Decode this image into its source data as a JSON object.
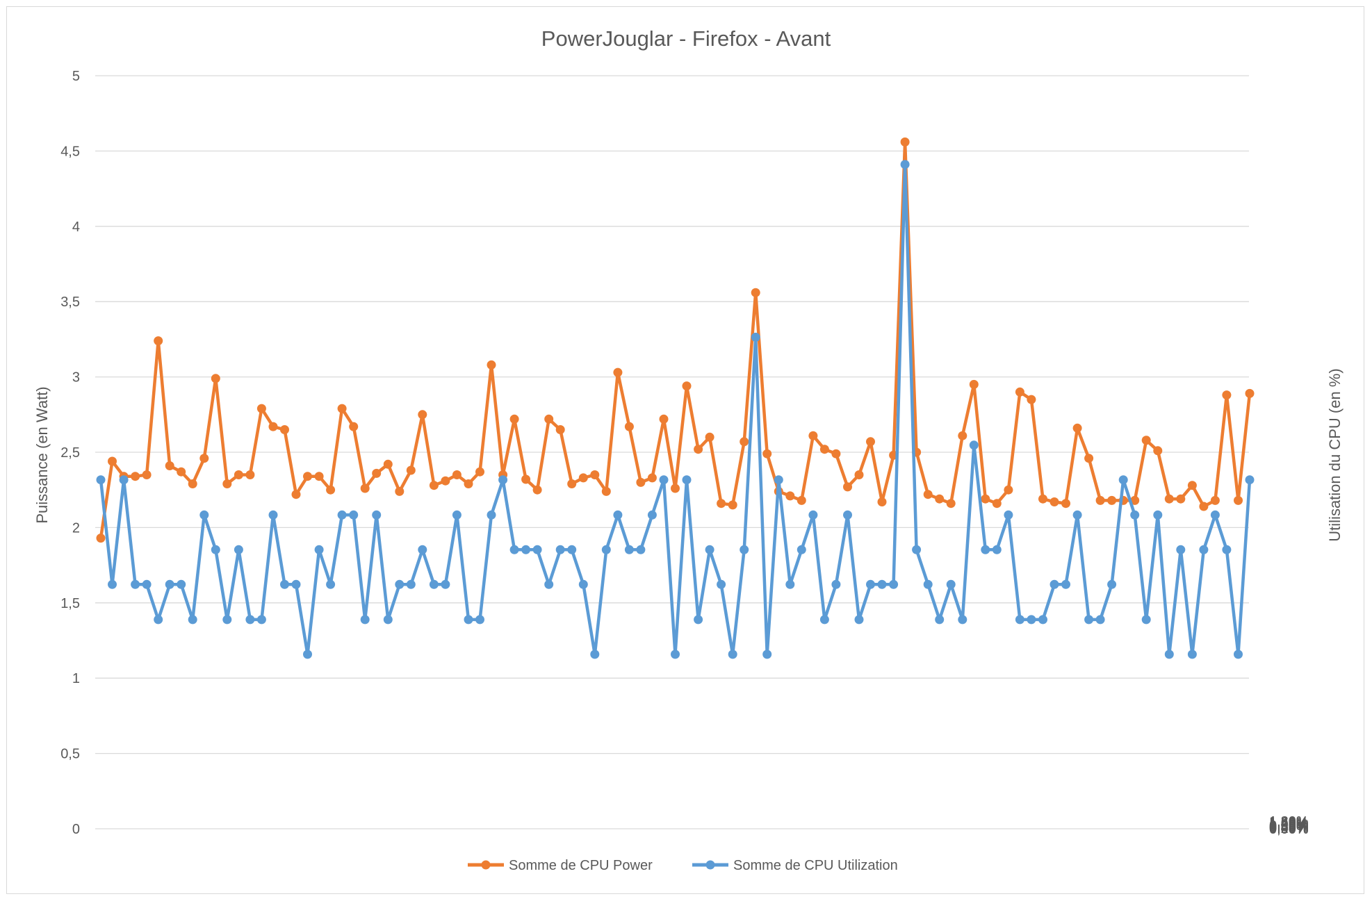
{
  "chart_data": {
    "type": "line",
    "title": "PowerJouglar - Firefox - Avant",
    "ylabel": "Puissance (en Watt)",
    "y2label": "Utilisation du CPU (en %)",
    "ylim": [
      0,
      5
    ],
    "y2lim": [
      0,
      1.8
    ],
    "y_ticks": [
      "0",
      "0,5",
      "1",
      "1,5",
      "2",
      "2,5",
      "3",
      "3,5",
      "4",
      "4,5",
      "5"
    ],
    "y2_ticks": [
      "0,00%",
      "0,20%",
      "0,40%",
      "0,60%",
      "0,80%",
      "1,00%",
      "1,20%",
      "1,40%",
      "1,60%",
      "1,80%"
    ],
    "grid": true,
    "legend_position": "bottom",
    "series": [
      {
        "name": "Somme de CPU Power",
        "axis": "left",
        "color": "#ED7D31",
        "values": [
          1.93,
          2.44,
          2.34,
          2.34,
          2.35,
          3.24,
          2.41,
          2.37,
          2.29,
          2.46,
          2.99,
          2.29,
          2.35,
          2.35,
          2.79,
          2.67,
          2.65,
          2.22,
          2.34,
          2.34,
          2.25,
          2.79,
          2.67,
          2.26,
          2.36,
          2.42,
          2.24,
          2.38,
          2.75,
          2.28,
          2.31,
          2.35,
          2.29,
          2.37,
          3.08,
          2.35,
          2.72,
          2.32,
          2.25,
          2.72,
          2.65,
          2.29,
          2.33,
          2.35,
          2.24,
          3.03,
          2.67,
          2.3,
          2.33,
          2.72,
          2.26,
          2.94,
          2.52,
          2.6,
          2.16,
          2.15,
          2.57,
          3.56,
          2.49,
          2.24,
          2.21,
          2.18,
          2.61,
          2.52,
          2.49,
          2.27,
          2.35,
          2.57,
          2.17,
          2.48,
          4.56,
          2.5,
          2.22,
          2.19,
          2.16,
          2.61,
          2.95,
          2.19,
          2.16,
          2.25,
          2.9,
          2.85,
          2.19,
          2.17,
          2.16,
          2.66,
          2.46,
          2.18,
          2.18,
          2.18,
          2.18,
          2.58,
          2.51,
          2.19,
          2.19,
          2.28,
          2.14,
          2.18,
          2.88,
          2.18,
          2.89
        ]
      },
      {
        "name": "Somme de CPU Utilization",
        "axis": "right",
        "color": "#5B9BD5",
        "values": [
          0.00834,
          0.00584,
          0.00834,
          0.00584,
          0.00584,
          0.005,
          0.00584,
          0.00584,
          0.005,
          0.0075,
          0.00667,
          0.005,
          0.00667,
          0.005,
          0.005,
          0.0075,
          0.00584,
          0.00584,
          0.00417,
          0.00667,
          0.00584,
          0.0075,
          0.0075,
          0.005,
          0.0075,
          0.005,
          0.00584,
          0.00584,
          0.00667,
          0.00584,
          0.00584,
          0.0075,
          0.005,
          0.005,
          0.0075,
          0.00834,
          0.00667,
          0.00667,
          0.00667,
          0.00584,
          0.00667,
          0.00667,
          0.00584,
          0.00417,
          0.00667,
          0.0075,
          0.00667,
          0.00667,
          0.0075,
          0.00834,
          0.00417,
          0.00834,
          0.005,
          0.00667,
          0.00584,
          0.00417,
          0.00667,
          0.01175,
          0.00417,
          0.00834,
          0.00584,
          0.00667,
          0.0075,
          0.005,
          0.00584,
          0.0075,
          0.005,
          0.00584,
          0.00584,
          0.00584,
          0.01588,
          0.00667,
          0.00584,
          0.005,
          0.00584,
          0.005,
          0.00917,
          0.00667,
          0.00667,
          0.0075,
          0.005,
          0.005,
          0.005,
          0.00584,
          0.00584,
          0.0075,
          0.005,
          0.005,
          0.00584,
          0.00834,
          0.0075,
          0.005,
          0.0075,
          0.00417,
          0.00667,
          0.00417,
          0.00667,
          0.0075,
          0.00667,
          0.00417,
          0.00834
        ]
      }
    ]
  }
}
